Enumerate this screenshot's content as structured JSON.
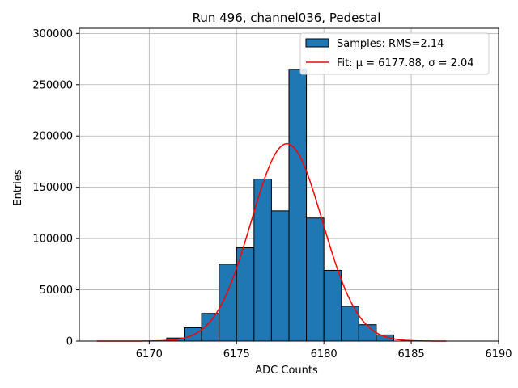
{
  "chart_data": {
    "type": "bar",
    "title": "Run 496, channel036, Pedestal",
    "xlabel": "ADC Counts",
    "ylabel": "Entries",
    "xlim": [
      6166,
      6190
    ],
    "ylim": [
      0,
      305000
    ],
    "xticks": [
      6170,
      6175,
      6180,
      6185,
      6190
    ],
    "yticks": [
      0,
      50000,
      100000,
      150000,
      200000,
      250000,
      300000
    ],
    "grid": true,
    "legend_position": "top-right",
    "bin_width": 1,
    "bins": [
      {
        "x": 6171,
        "value": 3000
      },
      {
        "x": 6172,
        "value": 13000
      },
      {
        "x": 6173,
        "value": 27000
      },
      {
        "x": 6174,
        "value": 75000
      },
      {
        "x": 6175,
        "value": 91000
      },
      {
        "x": 6176,
        "value": 158000
      },
      {
        "x": 6177,
        "value": 127000
      },
      {
        "x": 6178,
        "value": 265000
      },
      {
        "x": 6179,
        "value": 120000
      },
      {
        "x": 6180,
        "value": 69000
      },
      {
        "x": 6181,
        "value": 34000
      },
      {
        "x": 6182,
        "value": 16000
      },
      {
        "x": 6183,
        "value": 6000
      }
    ],
    "fit": {
      "mu": 6177.88,
      "sigma": 2.04,
      "amplitude": 192500,
      "x_range": [
        6167,
        6187
      ]
    },
    "legend": [
      {
        "label": "Samples: RMS=2.14",
        "kind": "patch",
        "color": "#1f77b4"
      },
      {
        "label": "Fit: μ = 6177.88, σ = 2.04",
        "kind": "line",
        "color": "#ff0000"
      }
    ],
    "colors": {
      "bar_fill": "#1f77b4",
      "bar_edge": "#000000",
      "fit_line": "#ff0000",
      "grid": "#b0b0b0"
    }
  }
}
